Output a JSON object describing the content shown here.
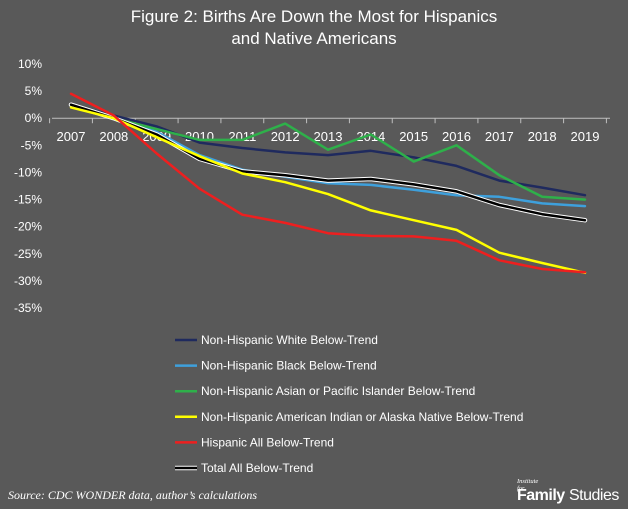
{
  "title_line1": "Figure 2: Births Are Down the Most for Hispanics",
  "title_line2": "and Native Americans",
  "source": "Source: CDC WONDER data, author’s calculations",
  "logo": {
    "small_text": "Institute for",
    "family": "Family",
    "studies": "Studies"
  },
  "chart_data": {
    "type": "line",
    "title": "Figure 2: Births Are Down the Most for Hispanics and Native Americans",
    "x": [
      "2007",
      "2008",
      "2009",
      "2010",
      "2011",
      "2012",
      "2013",
      "2014",
      "2015",
      "2016",
      "2017",
      "2018",
      "2019"
    ],
    "ylim": [
      -35,
      10
    ],
    "yticks": [
      "10%",
      "5%",
      "0%",
      "-5%",
      "-10%",
      "-15%",
      "-20%",
      "-25%",
      "-30%",
      "-35%"
    ],
    "ytick_values": [
      10,
      5,
      0,
      -5,
      -10,
      -15,
      -20,
      -25,
      -30,
      -35
    ],
    "grid": false,
    "legend_position": "bottom-left",
    "series": [
      {
        "name": "Non-Hispanic White Below-Trend",
        "color": "#1f2a5e",
        "values": [
          2.5,
          0.5,
          -1.5,
          -4.5,
          -5.5,
          -6.3,
          -6.8,
          -6.0,
          -7.2,
          -8.8,
          -11.5,
          -12.8,
          -14.2
        ]
      },
      {
        "name": "Non-Hispanic Black Below-Trend",
        "color": "#3ea0dc",
        "values": [
          2.5,
          0.0,
          -2.5,
          -6.8,
          -9.5,
          -10.8,
          -12.0,
          -12.3,
          -13.2,
          -14.2,
          -14.5,
          -15.7,
          -16.2
        ]
      },
      {
        "name": "Non-Hispanic Asian or Pacific Islander Below-Trend",
        "color": "#2eb04a",
        "values": [
          2.5,
          0.0,
          -2.0,
          -4.0,
          -4.0,
          -1.0,
          -5.8,
          -3.0,
          -8.0,
          -5.0,
          -10.5,
          -14.5,
          -15.0
        ]
      },
      {
        "name": "Non-Hispanic American Indian or Alaska Native Below-Trend",
        "color": "#ffff00",
        "values": [
          2.0,
          0.0,
          -3.5,
          -7.0,
          -10.2,
          -11.8,
          -14.0,
          -17.0,
          -18.8,
          -20.6,
          -24.8,
          -26.7,
          -28.5
        ]
      },
      {
        "name": "Hispanic All Below-Trend",
        "color": "#ee1f1f",
        "values": [
          4.5,
          0.5,
          -6.5,
          -13.0,
          -17.8,
          -19.3,
          -21.2,
          -21.7,
          -21.8,
          -22.6,
          -26.2,
          -27.8,
          -28.4
        ]
      },
      {
        "name": "Total All Below-Trend",
        "color": "#000000",
        "values": [
          2.5,
          0.0,
          -3.0,
          -7.5,
          -9.8,
          -10.5,
          -11.5,
          -11.2,
          -12.2,
          -13.5,
          -16.0,
          -17.7,
          -18.8
        ]
      }
    ]
  }
}
